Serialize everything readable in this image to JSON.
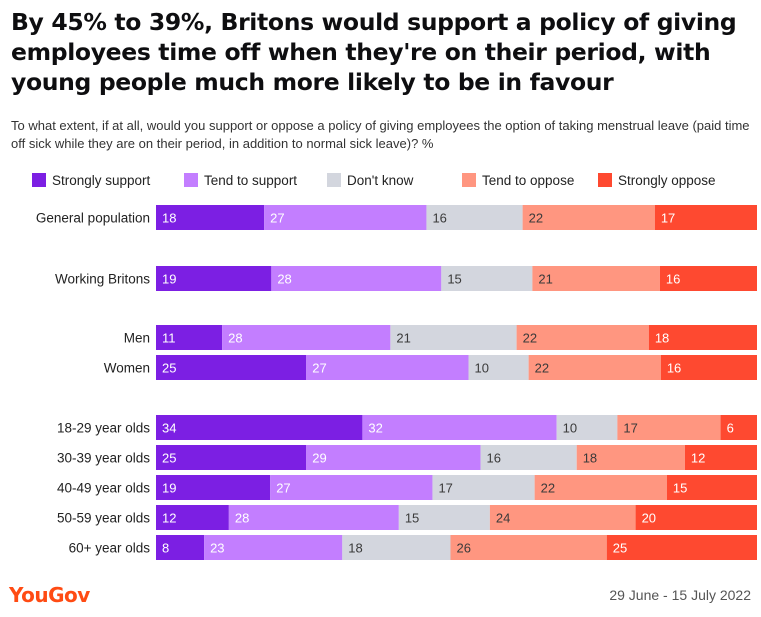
{
  "title": "By 45% to 39%, Britons would support a policy of giving employees time off when they're on their period, with young people much more likely to be in favour",
  "subtitle": "To what extent, if at all, would you support or oppose a policy of giving employees the option of taking menstrual leave (paid time off sick while they are on their period, in addition to normal sick leave)? %",
  "brand": "YouGov",
  "date": "29 June - 15 July 2022",
  "chart_data": {
    "type": "bar",
    "orientation": "horizontal",
    "stacked": true,
    "unit": "%",
    "legend_placement": "top",
    "grid": false,
    "xlim": [
      0,
      100
    ],
    "categories": [
      "General population",
      "Working Britons",
      "Men",
      "Women",
      "18-29 year olds",
      "30-39 year olds",
      "40-49 year olds",
      "50-59 year olds",
      "60+ year olds"
    ],
    "series": [
      {
        "name": "Strongly support",
        "color": "#7c1fe3",
        "label_color": "#ffffff",
        "values": [
          18,
          19,
          11,
          25,
          34,
          25,
          19,
          12,
          8
        ]
      },
      {
        "name": "Tend to support",
        "color": "#c37eff",
        "label_color": "#ffffff",
        "values": [
          27,
          28,
          28,
          27,
          32,
          29,
          27,
          28,
          23
        ]
      },
      {
        "name": "Don't know",
        "color": "#d3d6de",
        "label_color": "#3a3a3a",
        "values": [
          16,
          15,
          21,
          10,
          10,
          16,
          17,
          15,
          18
        ]
      },
      {
        "name": "Tend to oppose",
        "color": "#ff9680",
        "label_color": "#3a3a3a",
        "values": [
          22,
          21,
          22,
          22,
          17,
          18,
          22,
          24,
          26
        ]
      },
      {
        "name": "Strongly oppose",
        "color": "#fe4930",
        "label_color": "#ffffff",
        "values": [
          17,
          16,
          18,
          16,
          6,
          12,
          15,
          20,
          25
        ]
      }
    ]
  }
}
